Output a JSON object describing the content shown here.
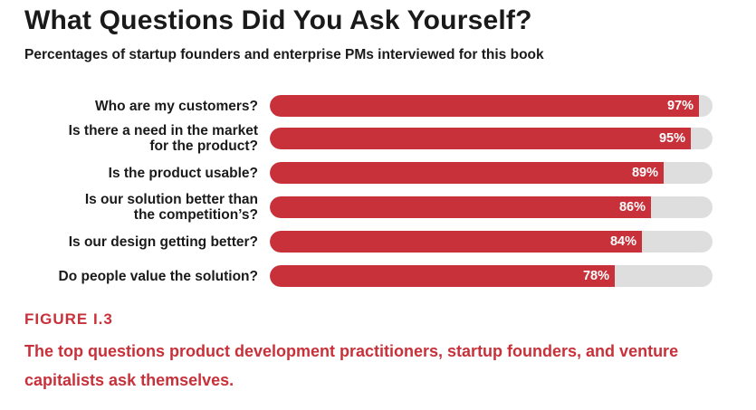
{
  "chart_data": {
    "type": "bar",
    "orientation": "horizontal",
    "title": "What Questions Did You Ask Yourself?",
    "subtitle": "Percentages of startup founders and enterprise PMs interviewed for this book",
    "categories": [
      [
        "Who are my customers?"
      ],
      [
        "Is there a need in the market",
        "for the product?"
      ],
      [
        "Is the product usable?"
      ],
      [
        "Is our solution better than",
        "the competition’s?"
      ],
      [
        "Is our design getting better?"
      ],
      [
        "Do people value the solution?"
      ]
    ],
    "values": [
      97,
      95,
      89,
      86,
      84,
      78
    ],
    "value_labels": [
      "97%",
      "95%",
      "89%",
      "86%",
      "84%",
      "78%"
    ],
    "xlim": [
      0,
      100
    ],
    "unit": "%",
    "grid": false,
    "colors": {
      "bar": "#c8313a",
      "track": "#dedede"
    }
  },
  "figure": {
    "label": "FIGURE I.3",
    "caption": "The top questions product development practitioners, startup founders, and venture capitalists ask themselves."
  }
}
